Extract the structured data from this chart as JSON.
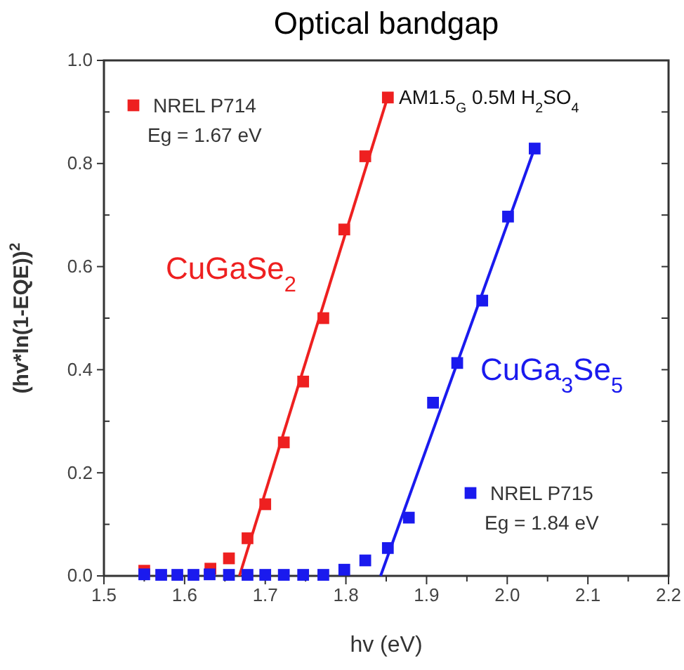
{
  "chart_data": {
    "type": "scatter",
    "title": "Optical bandgap",
    "xlabel": "hv (eV)",
    "ylabel": "(hv*ln(1-EQE))$^{2}$",
    "xlim": [
      1.5,
      2.2
    ],
    "ylim": [
      0,
      1.0
    ],
    "xticks": [
      {
        "value": 1.5,
        "label": "1.5"
      },
      {
        "value": 1.55,
        "label": null
      },
      {
        "value": 1.6,
        "label": "1.6"
      },
      {
        "value": 1.65,
        "label": null
      },
      {
        "value": 1.7,
        "label": "1.7"
      },
      {
        "value": 1.75,
        "label": null
      },
      {
        "value": 1.8,
        "label": "1.8"
      },
      {
        "value": 1.85,
        "label": null
      },
      {
        "value": 1.9,
        "label": "1.9"
      },
      {
        "value": 1.95,
        "label": null
      },
      {
        "value": 2.0,
        "label": "2.0"
      },
      {
        "value": 2.05,
        "label": null
      },
      {
        "value": 2.1,
        "label": "2.1"
      },
      {
        "value": 2.15,
        "label": null
      },
      {
        "value": 2.2,
        "label": "2.2"
      }
    ],
    "yticks": [
      {
        "value": 0,
        "label": "0.0"
      },
      {
        "value": 0.1,
        "label": null
      },
      {
        "value": 0.2,
        "label": "0.2"
      },
      {
        "value": 0.3,
        "label": null
      },
      {
        "value": 0.4,
        "label": "0.4"
      },
      {
        "value": 0.5,
        "label": null
      },
      {
        "value": 0.6,
        "label": "0.6"
      },
      {
        "value": 0.7,
        "label": null
      },
      {
        "value": 0.8,
        "label": "0.8"
      },
      {
        "value": 0.9,
        "label": null
      },
      {
        "value": 1.0,
        "label": "1.0"
      }
    ],
    "marker": "square",
    "legend": "top left",
    "grid": false,
    "series": [
      {
        "name": "NREL P714",
        "color": "#ee2020",
        "x": [
          1.55,
          1.632,
          1.655,
          1.678,
          1.7,
          1.723,
          1.747,
          1.772,
          1.798,
          1.824,
          1.852
        ],
        "values": [
          0.01,
          0.014,
          0.034,
          0.073,
          0.139,
          0.259,
          0.377,
          0.5,
          0.672,
          0.814,
          0.928
        ]
      },
      {
        "name": "NREL P715",
        "color": "#1a1aee",
        "x": [
          1.55,
          1.571,
          1.591,
          1.611,
          1.631,
          1.655,
          1.678,
          1.7,
          1.723,
          1.747,
          1.772,
          1.798,
          1.824,
          1.852,
          1.878,
          1.908,
          1.938,
          1.969,
          2.001,
          2.034
        ],
        "values": [
          0.003,
          0.002,
          0.002,
          0.002,
          0.003,
          0.002,
          0.002,
          0.002,
          0.002,
          0.002,
          0.002,
          0.012,
          0.03,
          0.054,
          0.113,
          0.336,
          0.413,
          0.534,
          0.697,
          0.829
        ]
      },
      {
        "type": "line",
        "marker": "none",
        "color": "#ee2020",
        "x": [
          1.668,
          1.852
        ],
        "values": [
          0,
          0.93
        ]
      },
      {
        "type": "line",
        "marker": "none",
        "color": "#1a1aee",
        "x": [
          1.843,
          2.034
        ],
        "values": [
          0,
          0.83
        ]
      }
    ],
    "annotations": [
      "Eg = 1.67 eV",
      "Eg = 1.84 eV",
      "AM1.5$_{G}$ 0.5M H$_{2}$SO$_{4}$",
      "CuGaSe$_{2}$",
      "CuGa$_{3}$Se$_{5}$"
    ]
  }
}
